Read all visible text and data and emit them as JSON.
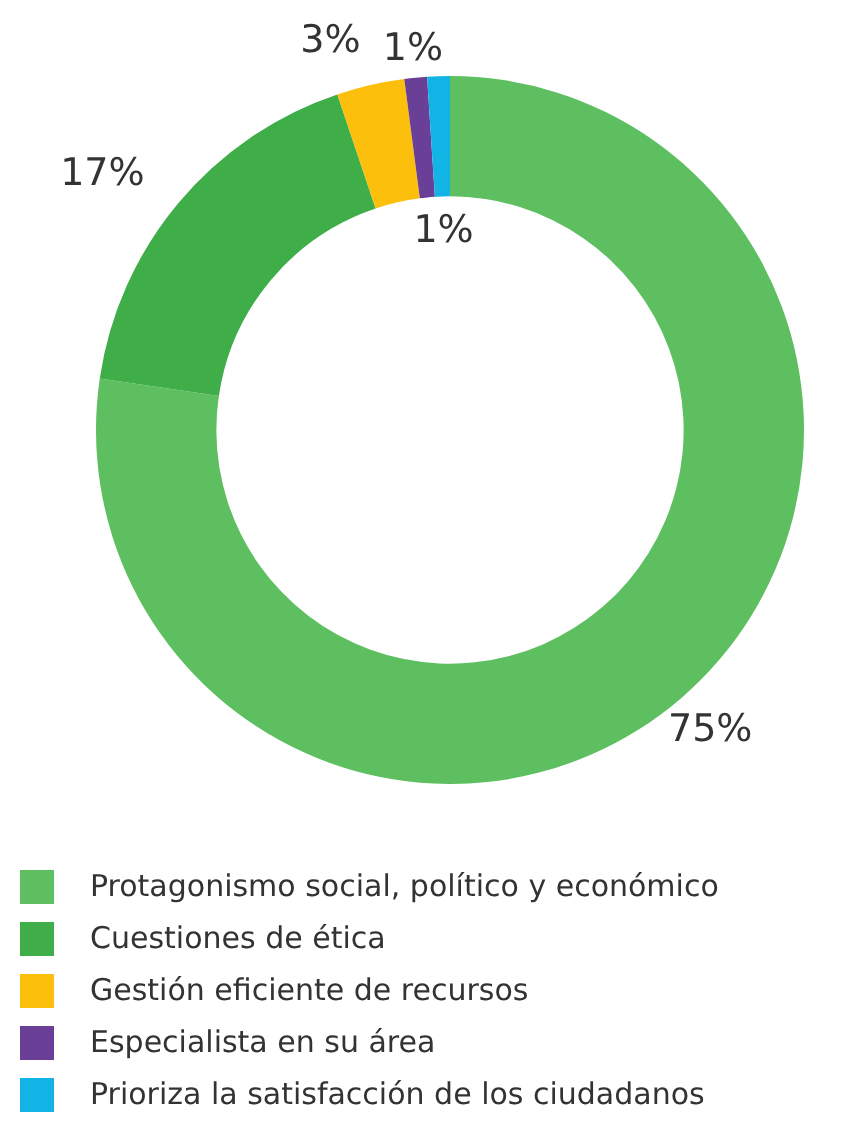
{
  "chart_data": {
    "type": "donut",
    "categories": [
      "Protagonismo social, político y económico",
      "Cuestiones de ética",
      "Gestión eficiente de recursos",
      "Especialista en su área",
      "Prioriza la satisfacción de los ciudadanos"
    ],
    "values": [
      75,
      17,
      3,
      1,
      1
    ],
    "colors": [
      "#5dbf5f",
      "#3fae49",
      "#fbbf0c",
      "#6a3f98",
      "#12b4e6"
    ],
    "value_labels": [
      "75%",
      "17%",
      "3%",
      "1%",
      "1%"
    ],
    "legend": "bottom"
  }
}
